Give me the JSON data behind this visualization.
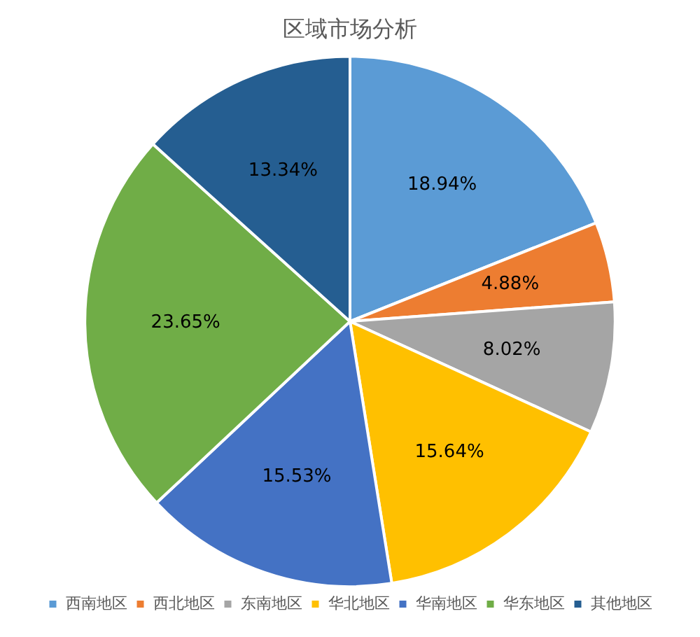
{
  "chart_data": {
    "type": "pie",
    "title": "区域市场分析",
    "categories": [
      "西南地区",
      "西北地区",
      "东南地区",
      "华北地区",
      "华南地区",
      "华东地区",
      "其他地区"
    ],
    "values": [
      18.94,
      4.88,
      8.02,
      15.64,
      15.53,
      23.65,
      13.34
    ],
    "value_labels": [
      "18.94%",
      "4.88%",
      "8.02%",
      "15.64%",
      "15.53%",
      "23.65%",
      "13.34%"
    ],
    "colors": [
      "#5b9bd5",
      "#ed7d31",
      "#a5a5a5",
      "#ffc000",
      "#4472c4",
      "#70ad47",
      "#255e91"
    ],
    "legend": "bottom"
  }
}
